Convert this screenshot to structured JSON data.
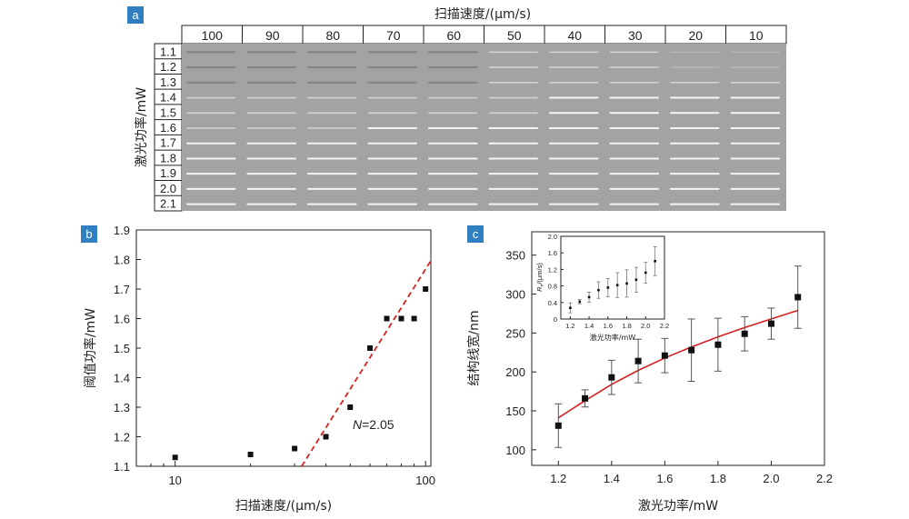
{
  "panels": {
    "a": {
      "badge": "a",
      "xlabel": "扫描速度/(μm/s)",
      "ylabel": "激光功率/mW",
      "speeds": [
        "100",
        "90",
        "80",
        "70",
        "60",
        "50",
        "40",
        "30",
        "20",
        "10"
      ],
      "powers": [
        "1.1",
        "1.2",
        "1.3",
        "1.4",
        "1.5",
        "1.6",
        "1.7",
        "1.8",
        "1.9",
        "2.0",
        "2.1"
      ]
    }
  },
  "chart_data": [
    {
      "panel": "b",
      "badge": "b",
      "type": "scatter",
      "xlabel": "扫描速度/(μm/s)",
      "ylabel": "阈值功率/mW",
      "xscale": "log",
      "xlim": [
        7,
        105
      ],
      "ylim": [
        1.1,
        1.9
      ],
      "xticks": [
        10,
        100
      ],
      "yticks": [
        1.1,
        1.2,
        1.3,
        1.4,
        1.5,
        1.6,
        1.7,
        1.8,
        1.9
      ],
      "points": {
        "x": [
          10,
          20,
          30,
          40,
          50,
          60,
          70,
          80,
          90,
          100
        ],
        "y": [
          1.13,
          1.14,
          1.16,
          1.2,
          1.3,
          1.5,
          1.6,
          1.6,
          1.6,
          1.7
        ]
      },
      "fit_line": {
        "x": [
          32,
          110
        ],
        "y": [
          1.1,
          1.8
        ],
        "color": "#d42020",
        "style": "dashed"
      },
      "annotation": {
        "prefix": "N",
        "text": "=2.05"
      },
      "grid": false,
      "marker_color": "#111111"
    },
    {
      "panel": "c",
      "badge": "c",
      "type": "scatter",
      "xlabel": "激光功率/mW",
      "ylabel": "结构线宽/nm",
      "xlim": [
        1.1,
        2.2
      ],
      "ylim": [
        80,
        380
      ],
      "xticks": [
        1.2,
        1.4,
        1.6,
        1.8,
        2.0,
        2.2
      ],
      "yticks": [
        100,
        150,
        200,
        250,
        300,
        350
      ],
      "points": {
        "x": [
          1.2,
          1.3,
          1.4,
          1.5,
          1.6,
          1.7,
          1.8,
          1.9,
          2.0,
          2.1
        ],
        "y": [
          131,
          166,
          193,
          214,
          221,
          228,
          235,
          249,
          262,
          296
        ],
        "err": [
          28,
          11,
          22,
          28,
          22,
          40,
          34,
          22,
          20,
          40
        ]
      },
      "fit_curve": {
        "x": [
          1.2,
          1.3,
          1.4,
          1.5,
          1.6,
          1.7,
          1.8,
          1.9,
          2.0,
          2.1
        ],
        "y": [
          141,
          163,
          184,
          202,
          218,
          232,
          245,
          257,
          268,
          279
        ],
        "color": "#d42020"
      },
      "grid": false,
      "inset": {
        "type": "scatter",
        "xlabel": "激光功率/mW",
        "ylabel_main": "R",
        "ylabel_sub": "v",
        "ylabel_rest": "/(μm/s)",
        "xlim": [
          1.1,
          2.2
        ],
        "ylim": [
          0,
          2.0
        ],
        "xticks": [
          1.2,
          1.4,
          1.6,
          1.8,
          2.0,
          2.2
        ],
        "yticks": [
          0,
          0.4,
          0.8,
          1.2,
          1.6,
          2.0
        ],
        "ytick_labels": [
          "0",
          "0.4",
          "0.8",
          "1.2",
          "1.6",
          "2.0"
        ],
        "points": {
          "x": [
            1.2,
            1.3,
            1.4,
            1.5,
            1.6,
            1.7,
            1.8,
            1.9,
            2.0,
            2.1
          ],
          "y": [
            0.27,
            0.42,
            0.53,
            0.7,
            0.76,
            0.82,
            0.86,
            0.95,
            1.12,
            1.4
          ],
          "err": [
            0.12,
            0.05,
            0.12,
            0.2,
            0.22,
            0.3,
            0.33,
            0.3,
            0.25,
            0.35
          ]
        }
      }
    }
  ],
  "colors": {
    "badge": "#2f7fc1",
    "fit": "#d42020",
    "micro_bg": "#a3a3a3",
    "line": "#ececec"
  }
}
